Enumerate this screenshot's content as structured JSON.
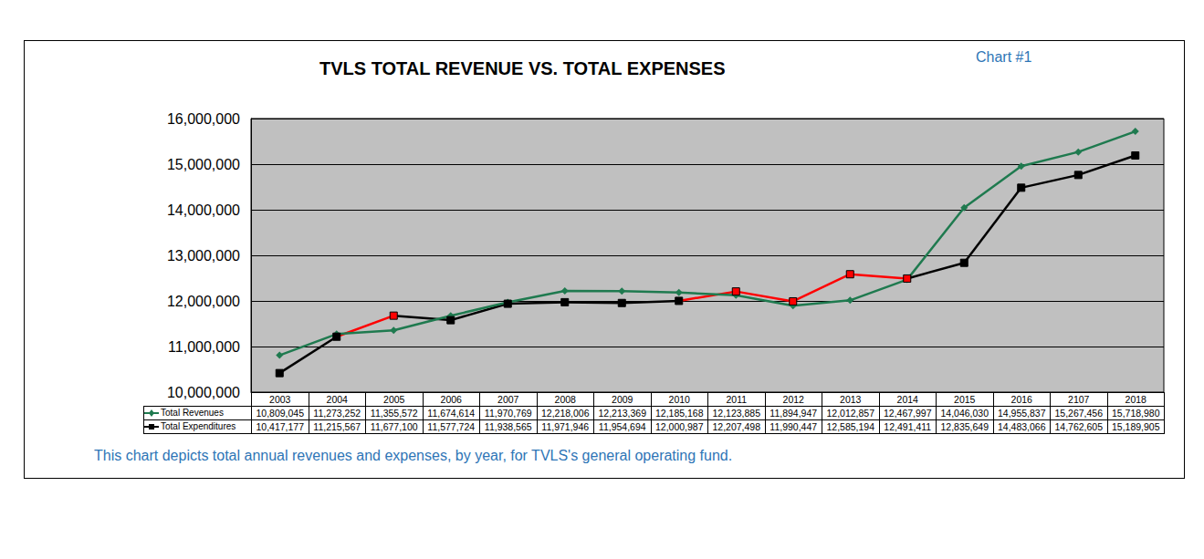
{
  "chart_data": {
    "type": "line",
    "title": "TVLS TOTAL REVENUE VS. TOTAL EXPENSES",
    "annotations": [
      "Chart #1",
      "This chart depicts total annual revenues and expenses, by year, for TVLS's general operating fund."
    ],
    "categories": [
      "2003",
      "2004",
      "2005",
      "2006",
      "2007",
      "2008",
      "2009",
      "2010",
      "2011",
      "2012",
      "2013",
      "2014",
      "2015",
      "2016",
      "2107",
      "2018"
    ],
    "series": [
      {
        "name": "Total Revenues",
        "color": "#1f7a4f",
        "marker": "diamond",
        "values": [
          10809045,
          11273252,
          11355572,
          11674614,
          11970769,
          12218006,
          12213369,
          12185168,
          12123885,
          11894947,
          12012857,
          12467997,
          14046030,
          14955837,
          15267456,
          15718980
        ],
        "value_labels": [
          "10,809,045",
          "11,273,252",
          "11,355,572",
          "11,674,614",
          "11,970,769",
          "12,218,006",
          "12,213,369",
          "12,185,168",
          "12,123,885",
          "11,894,947",
          "12,012,857",
          "12,467,997",
          "14,046,030",
          "14,955,837",
          "15,267,456",
          "15,718,980"
        ]
      },
      {
        "name": "Total Expenditures",
        "color": "#000000",
        "marker": "square",
        "colors": [
          "#000000",
          "#000000",
          "#ff0000",
          "#000000",
          "#000000",
          "#000000",
          "#000000",
          "#000000",
          "#ff0000",
          "#ff0000",
          "#ff0000",
          "#ff0000",
          "#000000",
          "#000000",
          "#000000",
          "#000000"
        ],
        "values": [
          10417177,
          11215567,
          11677100,
          11577724,
          11938565,
          11971946,
          11954694,
          12000987,
          12207498,
          11990447,
          12585194,
          12491411,
          12835649,
          14483066,
          14762605,
          15189905
        ],
        "value_labels": [
          "10,417,177",
          "11,215,567",
          "11,677,100",
          "11,577,724",
          "11,938,565",
          "11,971,946",
          "11,954,694",
          "12,000,987",
          "12,207,498",
          "11,990,447",
          "12,585,194",
          "12,491,411",
          "12,835,649",
          "14,483,066",
          "14,762,605",
          "15,189,905"
        ]
      }
    ],
    "ylim": [
      10000000,
      16000000
    ],
    "yticks": [
      {
        "value": 10000000,
        "label": "10,000,000"
      },
      {
        "value": 11000000,
        "label": "11,000,000"
      },
      {
        "value": 12000000,
        "label": "12,000,000"
      },
      {
        "value": 13000000,
        "label": "13,000,000"
      },
      {
        "value": 14000000,
        "label": "14,000,000"
      },
      {
        "value": 15000000,
        "label": "15,000,000"
      },
      {
        "value": 16000000,
        "label": "16,000,000"
      }
    ],
    "grid": true
  }
}
